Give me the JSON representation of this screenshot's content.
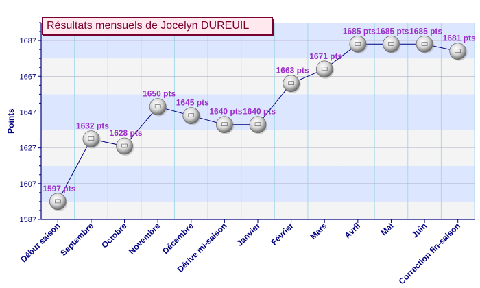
{
  "chart_data": {
    "type": "line",
    "title": "Résultats mensuels de Jocelyn DUREUIL",
    "xlabel": "",
    "ylabel": "Points",
    "categories": [
      "Début saison",
      "Septembre",
      "Octobre",
      "Novembre",
      "Décembre",
      "Dérive mi-saison",
      "Janvier",
      "Février",
      "Mars",
      "Avril",
      "Mai",
      "Juin",
      "Correction fin-saison"
    ],
    "values": [
      1597,
      1632,
      1628,
      1650,
      1645,
      1640,
      1640,
      1663,
      1671,
      1685,
      1685,
      1685,
      1681
    ],
    "data_labels": [
      "1597 pts",
      "1632 pts",
      "1628 pts",
      "1650 pts",
      "1645 pts",
      "1640 pts",
      "1640 pts",
      "1663 pts",
      "1671 pts",
      "1685 pts",
      "1685 pts",
      "1685 pts",
      "1681 pts"
    ],
    "yticks": [
      1587,
      1607,
      1627,
      1647,
      1667,
      1687
    ],
    "ylim": [
      1587,
      1697
    ],
    "grid": true,
    "legend": "none",
    "colors": {
      "line": "#000080",
      "label": "#9b30c8",
      "axis_text": "#000080",
      "band_light": "#f4f4f4",
      "band_blue": "#dde6ff",
      "gridline": "#a8d8ea",
      "title_bg": "#ffe8ee",
      "title_border": "#7a0030"
    }
  }
}
